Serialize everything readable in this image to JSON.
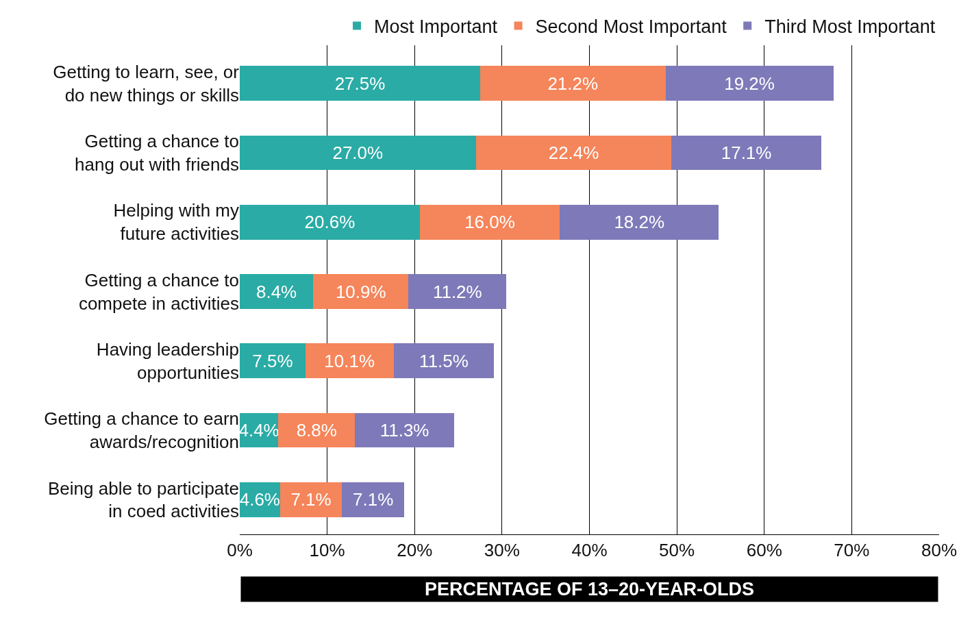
{
  "chart_data": {
    "type": "bar",
    "orientation": "horizontal",
    "stacked": true,
    "categories": [
      "Getting to learn, see, or\ndo new things or skills",
      "Getting a chance to\nhang out with friends",
      "Helping with my\nfuture activities",
      "Getting a chance to\ncompete in activities",
      "Having leadership\nopportunities",
      "Getting a chance to earn\nawards/recognition",
      "Being able to participate\nin coed activities"
    ],
    "series": [
      {
        "name": "Most Important",
        "color": "#2aaba5",
        "values": [
          27.5,
          27.0,
          20.6,
          8.4,
          7.5,
          4.4,
          4.6
        ],
        "value_labels": [
          "27.5%",
          "27.0%",
          "20.6%",
          "8.4%",
          "7.5%",
          "4.4%",
          "4.6%"
        ]
      },
      {
        "name": "Second Most Important",
        "color": "#f5855a",
        "values": [
          21.2,
          22.4,
          16.0,
          10.9,
          10.1,
          8.8,
          7.1
        ],
        "value_labels": [
          "21.2%",
          "22.4%",
          "16.0%",
          "10.9%",
          "10.1%",
          "8.8%",
          "7.1%"
        ]
      },
      {
        "name": "Third Most Important",
        "color": "#7e79b8",
        "values": [
          19.2,
          17.1,
          18.2,
          11.2,
          11.5,
          11.3,
          7.1
        ],
        "value_labels": [
          "19.2%",
          "17.1%",
          "18.2%",
          "11.2%",
          "11.5%",
          "11.3%",
          "7.1%"
        ]
      }
    ],
    "xlim": [
      0,
      80
    ],
    "xticks": [
      {
        "value": 0,
        "label": "0%"
      },
      {
        "value": 10,
        "label": "10%"
      },
      {
        "value": 20,
        "label": "20%"
      },
      {
        "value": 30,
        "label": "30%"
      },
      {
        "value": 40,
        "label": "40%"
      },
      {
        "value": 50,
        "label": "50%"
      },
      {
        "value": 60,
        "label": "60%"
      },
      {
        "value": 70,
        "label": "70%"
      },
      {
        "value": 80,
        "label": "80%"
      }
    ],
    "xlabel": "PERCENTAGE OF 13–20-YEAR-OLDS",
    "grid": "x",
    "legend": "top"
  }
}
